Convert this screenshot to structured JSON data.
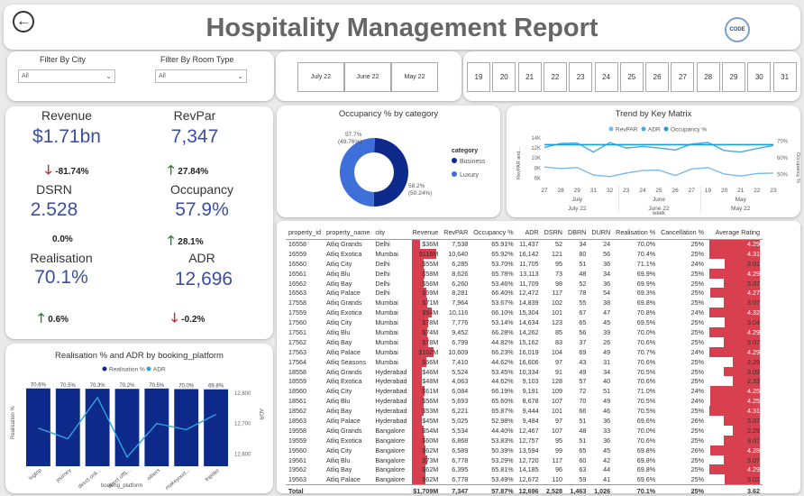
{
  "header": {
    "title": "Hospitality Management Report",
    "logo_text": "CODE"
  },
  "filters": {
    "city_label": "Filter By City",
    "city_value": "All",
    "room_label": "Filter By Room Type",
    "room_value": "All"
  },
  "months": [
    "July 22",
    "June 22",
    "May 22"
  ],
  "days": [
    "19",
    "20",
    "21",
    "22",
    "23",
    "24",
    "25",
    "26",
    "27",
    "28",
    "29",
    "30",
    "31"
  ],
  "kpis": {
    "revenue": {
      "label": "Revenue",
      "value": "$1.71bn",
      "change": "-81.74%",
      "dir": "down"
    },
    "revpar": {
      "label": "RevPar",
      "value": "7,347",
      "change": "27.84%",
      "dir": "up"
    },
    "dsrn": {
      "label": "DSRN",
      "value": "2.528",
      "change": "0.0%",
      "dir": "none"
    },
    "occupancy": {
      "label": "Occupancy",
      "value": "57.9%",
      "change": "28.1%",
      "dir": "up"
    },
    "realisation": {
      "label": "Realisation",
      "value": "70.1%",
      "change": "0.6%",
      "dir": "up"
    },
    "adr": {
      "label": "ADR",
      "value": "12,696",
      "change": "-0.2%",
      "dir": "down"
    }
  },
  "occupancy_chart": {
    "title": "Occupancy % by category",
    "legend_title": "category",
    "label_top": "57.7%",
    "label_top2": "(49.76%)",
    "label_bottom": "58.2%",
    "label_bottom2": "(50.24%)",
    "chart_data": {
      "type": "pie",
      "categories": [
        "Business",
        "Luxury"
      ],
      "values": [
        57.7,
        58.2
      ],
      "shares": [
        49.76,
        50.24
      ],
      "colors": [
        "#0d2a8a",
        "#3f6fd8"
      ]
    }
  },
  "trend_chart": {
    "title": "Trend by Key Matrix",
    "legend": [
      "RevPAR",
      "ADR",
      "Occupancy %"
    ],
    "ylabel_left": "RevPAR and...",
    "ylabel_right": "Occupancy %",
    "xlabel": "week",
    "ticks_left": [
      "14K",
      "12K",
      "10K",
      "8K",
      "6K"
    ],
    "ticks_right": [
      "70%",
      "60%",
      "50%"
    ],
    "x_ticks": [
      "27",
      "28",
      "29",
      "31",
      "32",
      "23",
      "24",
      "25",
      "26",
      "27",
      "19",
      "20",
      "21",
      "22",
      "23"
    ],
    "groups": [
      {
        "name": "July",
        "sub": "July 22"
      },
      {
        "name": "June",
        "sub": "June 22"
      },
      {
        "name": "May",
        "sub": "May 22"
      }
    ],
    "chart_data": {
      "type": "line",
      "x": [
        "27",
        "28",
        "29",
        "31",
        "32",
        "23",
        "24",
        "25",
        "26",
        "27",
        "19",
        "20",
        "21",
        "22",
        "23"
      ],
      "ylim_left": [
        5000,
        14000
      ],
      "ylim_right": [
        45,
        72
      ],
      "series": [
        {
          "name": "RevPAR",
          "axis": "left",
          "values": [
            8200,
            7900,
            8100,
            6600,
            6300,
            7000,
            7500,
            7600,
            6500,
            7800,
            8100,
            6800,
            6400,
            6900,
            7000
          ]
        },
        {
          "name": "ADR",
          "axis": "left",
          "values": [
            12100,
            12900,
            13000,
            11200,
            13100,
            12000,
            12300,
            12000,
            11600,
            12800,
            13100,
            11500,
            11200,
            11900,
            12500
          ]
        },
        {
          "name": "Occupancy %",
          "axis": "right",
          "values": [
            68,
            68,
            68,
            68,
            68,
            68,
            68,
            68,
            68,
            68,
            68,
            68,
            68,
            68,
            68
          ]
        }
      ]
    }
  },
  "realisation_chart": {
    "title": "Realisation % and ADR by booking_platform",
    "legend": [
      "Realisation %",
      "ADR"
    ],
    "ylabel_left": "Realisation %",
    "ylabel_right": "ADR",
    "xlabel": "booking_platform",
    "ticks_right": [
      "12,800",
      "12,700",
      "12,600"
    ],
    "chart_data": {
      "type": "bar",
      "categories": [
        "logtrip",
        "journey",
        "direct onli...",
        "direct offli...",
        "others",
        "makeyourt...",
        "tripster"
      ],
      "series": [
        {
          "name": "Realisation %",
          "values": [
            70.6,
            70.5,
            70.3,
            70.2,
            70.5,
            70.0,
            69.8
          ]
        },
        {
          "name": "ADR",
          "values": [
            12685,
            12650,
            12785,
            12590,
            12700,
            12680,
            12730
          ]
        }
      ],
      "ylim_right": [
        12560,
        12820
      ]
    }
  },
  "table": {
    "columns": [
      "property_id",
      "property_name",
      "city",
      "Revenue",
      "RevPAR",
      "Occupancy %",
      "ADR",
      "DSRN",
      "DBRN",
      "DURN",
      "Realisation %",
      "Cancellation %",
      "Average Rating"
    ],
    "rows": [
      [
        "16558",
        "Atliq Grands",
        "Delhi",
        "$36M",
        "7,538",
        "65.91%",
        "11,437",
        "52",
        "34",
        "24",
        "70.0%",
        "25%",
        "4.29"
      ],
      [
        "16559",
        "Atliq Exotica",
        "Mumbai",
        "$118M",
        "10,640",
        "65.92%",
        "16,142",
        "121",
        "80",
        "56",
        "70.4%",
        "25%",
        "4.31"
      ],
      [
        "16560",
        "Atliq City",
        "Delhi",
        "$55M",
        "6,285",
        "53.70%",
        "11,705",
        "95",
        "51",
        "36",
        "71.1%",
        "24%",
        "3.01"
      ],
      [
        "16561",
        "Atliq Blu",
        "Delhi",
        "$58M",
        "8,626",
        "65.78%",
        "13,113",
        "73",
        "48",
        "34",
        "69.9%",
        "25%",
        "4.29"
      ],
      [
        "16562",
        "Atliq Bay",
        "Delhi",
        "$56M",
        "6,260",
        "53.46%",
        "11,709",
        "98",
        "52",
        "36",
        "69.9%",
        "25%",
        "3.07"
      ],
      [
        "16563",
        "Atliq Palace",
        "Delhi",
        "$69M",
        "8,281",
        "66.40%",
        "12,472",
        "117",
        "78",
        "54",
        "69.3%",
        "25%",
        "4.27"
      ],
      [
        "17558",
        "Atliq Grands",
        "Mumbai",
        "$71M",
        "7,964",
        "53.67%",
        "14,839",
        "102",
        "55",
        "38",
        "69.8%",
        "25%",
        "3.07"
      ],
      [
        "17559",
        "Atliq Exotica",
        "Mumbai",
        "$94M",
        "10,116",
        "66.10%",
        "15,304",
        "101",
        "67",
        "47",
        "70.8%",
        "24%",
        "4.32"
      ],
      [
        "17560",
        "Atliq City",
        "Mumbai",
        "$78M",
        "7,776",
        "53.14%",
        "14,634",
        "123",
        "65",
        "45",
        "69.5%",
        "25%",
        "3.04"
      ],
      [
        "17561",
        "Atliq Blu",
        "Mumbai",
        "$74M",
        "9,452",
        "66.28%",
        "14,262",
        "85",
        "56",
        "39",
        "70.0%",
        "25%",
        "4.29"
      ],
      [
        "17562",
        "Atliq Bay",
        "Mumbai",
        "$78M",
        "6,799",
        "44.82%",
        "15,162",
        "83",
        "37",
        "26",
        "70.6%",
        "25%",
        "3.07"
      ],
      [
        "17563",
        "Atliq Palace",
        "Mumbai",
        "$102M",
        "10,609",
        "66.23%",
        "16,019",
        "104",
        "69",
        "49",
        "70.7%",
        "24%",
        "4.29"
      ],
      [
        "17564",
        "Atliq Seasons",
        "Mumbai",
        "$66M",
        "7,410",
        "44.62%",
        "16,606",
        "97",
        "43",
        "31",
        "70.6%",
        "25%",
        "2.29"
      ],
      [
        "18558",
        "Atliq Grands",
        "Hyderabad",
        "$46M",
        "5,524",
        "53.45%",
        "10,334",
        "91",
        "49",
        "34",
        "70.5%",
        "25%",
        "3.09"
      ],
      [
        "18559",
        "Atliq Exotica",
        "Hyderabad",
        "$48M",
        "4,063",
        "44.62%",
        "9,103",
        "128",
        "57",
        "40",
        "70.6%",
        "25%",
        "2.33"
      ],
      [
        "18560",
        "Atliq City",
        "Hyderabad",
        "$61M",
        "6,084",
        "66.19%",
        "9,191",
        "109",
        "72",
        "51",
        "71.0%",
        "24%",
        "4.25"
      ],
      [
        "18561",
        "Atliq Blu",
        "Hyderabad",
        "$56M",
        "5,693",
        "65.60%",
        "8,678",
        "107",
        "70",
        "49",
        "70.5%",
        "24%",
        "4.25"
      ],
      [
        "18562",
        "Atliq Bay",
        "Hyderabad",
        "$53M",
        "6,221",
        "65.87%",
        "9,444",
        "101",
        "66",
        "46",
        "70.5%",
        "25%",
        "4.31"
      ],
      [
        "18563",
        "Atliq Palace",
        "Hyderabad",
        "$45M",
        "5,025",
        "52.98%",
        "9,484",
        "97",
        "51",
        "36",
        "69.6%",
        "26%",
        "3.07"
      ],
      [
        "19558",
        "Atliq Grands",
        "Bangalore",
        "$54M",
        "5,534",
        "44.40%",
        "12,467",
        "107",
        "48",
        "33",
        "70.0%",
        "25%",
        "2.29"
      ],
      [
        "19559",
        "Atliq Exotica",
        "Bangalore",
        "$60M",
        "6,868",
        "53.83%",
        "12,757",
        "95",
        "51",
        "36",
        "70.6%",
        "25%",
        "3.07"
      ],
      [
        "19560",
        "Atliq City",
        "Bangalore",
        "$62M",
        "6,589",
        "50.39%",
        "13,594",
        "99",
        "65",
        "45",
        "69.8%",
        "26%",
        "4.28"
      ],
      [
        "19561",
        "Atliq Blu",
        "Bangalore",
        "$73M",
        "6,778",
        "53.29%",
        "12,720",
        "117",
        "60",
        "42",
        "69.8%",
        "25%",
        "3.07"
      ],
      [
        "19562",
        "Atliq Bay",
        "Bangalore",
        "$62M",
        "6,395",
        "65.81%",
        "14,185",
        "96",
        "63",
        "44",
        "69.8%",
        "25%",
        "4.29"
      ],
      [
        "19563",
        "Atliq Palace",
        "Bangalore",
        "$62M",
        "6,778",
        "53.49%",
        "12,672",
        "110",
        "59",
        "41",
        "69.6%",
        "25%",
        "3.02"
      ]
    ],
    "revenue_m": [
      36,
      118,
      55,
      58,
      56,
      69,
      71,
      94,
      78,
      74,
      78,
      102,
      66,
      46,
      48,
      61,
      56,
      53,
      45,
      54,
      60,
      62,
      73,
      62,
      62
    ],
    "rating_max": 4.32,
    "total": [
      "Total",
      "",
      "",
      "$1,709M",
      "7,347",
      "57.87%",
      "12,696",
      "2,528",
      "1,463",
      "1,026",
      "70.1%",
      "25%",
      "3.62"
    ]
  }
}
